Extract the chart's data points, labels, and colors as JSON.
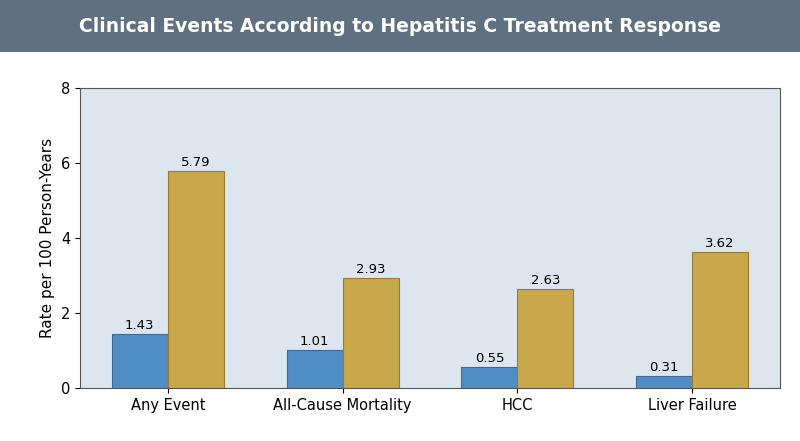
{
  "title": "Clinical Events According to Hepatitis C Treatment Response",
  "title_bg_color": "#5f7080",
  "title_text_color": "#ffffff",
  "ylabel": "Rate per 100 Person-Years",
  "categories": [
    "Any Event",
    "All-Cause Mortality",
    "HCC",
    "Liver Failure"
  ],
  "with_svr": [
    1.43,
    1.01,
    0.55,
    0.31
  ],
  "without_svr": [
    5.79,
    2.93,
    2.63,
    3.62
  ],
  "color_svr": "#4f8dc4",
  "color_no_svr": "#c8a84b",
  "edge_svr": "#3a6a9a",
  "edge_no_svr": "#9a7a30",
  "ylim": [
    0,
    8
  ],
  "yticks": [
    0,
    2,
    4,
    6,
    8
  ],
  "plot_bg_color": "#dde5ef",
  "outer_bg_color": "#ffffff",
  "bar_width": 0.32,
  "label_fontsize": 9.5,
  "axis_label_fontsize": 11,
  "tick_fontsize": 10.5,
  "title_fontsize": 13.5
}
